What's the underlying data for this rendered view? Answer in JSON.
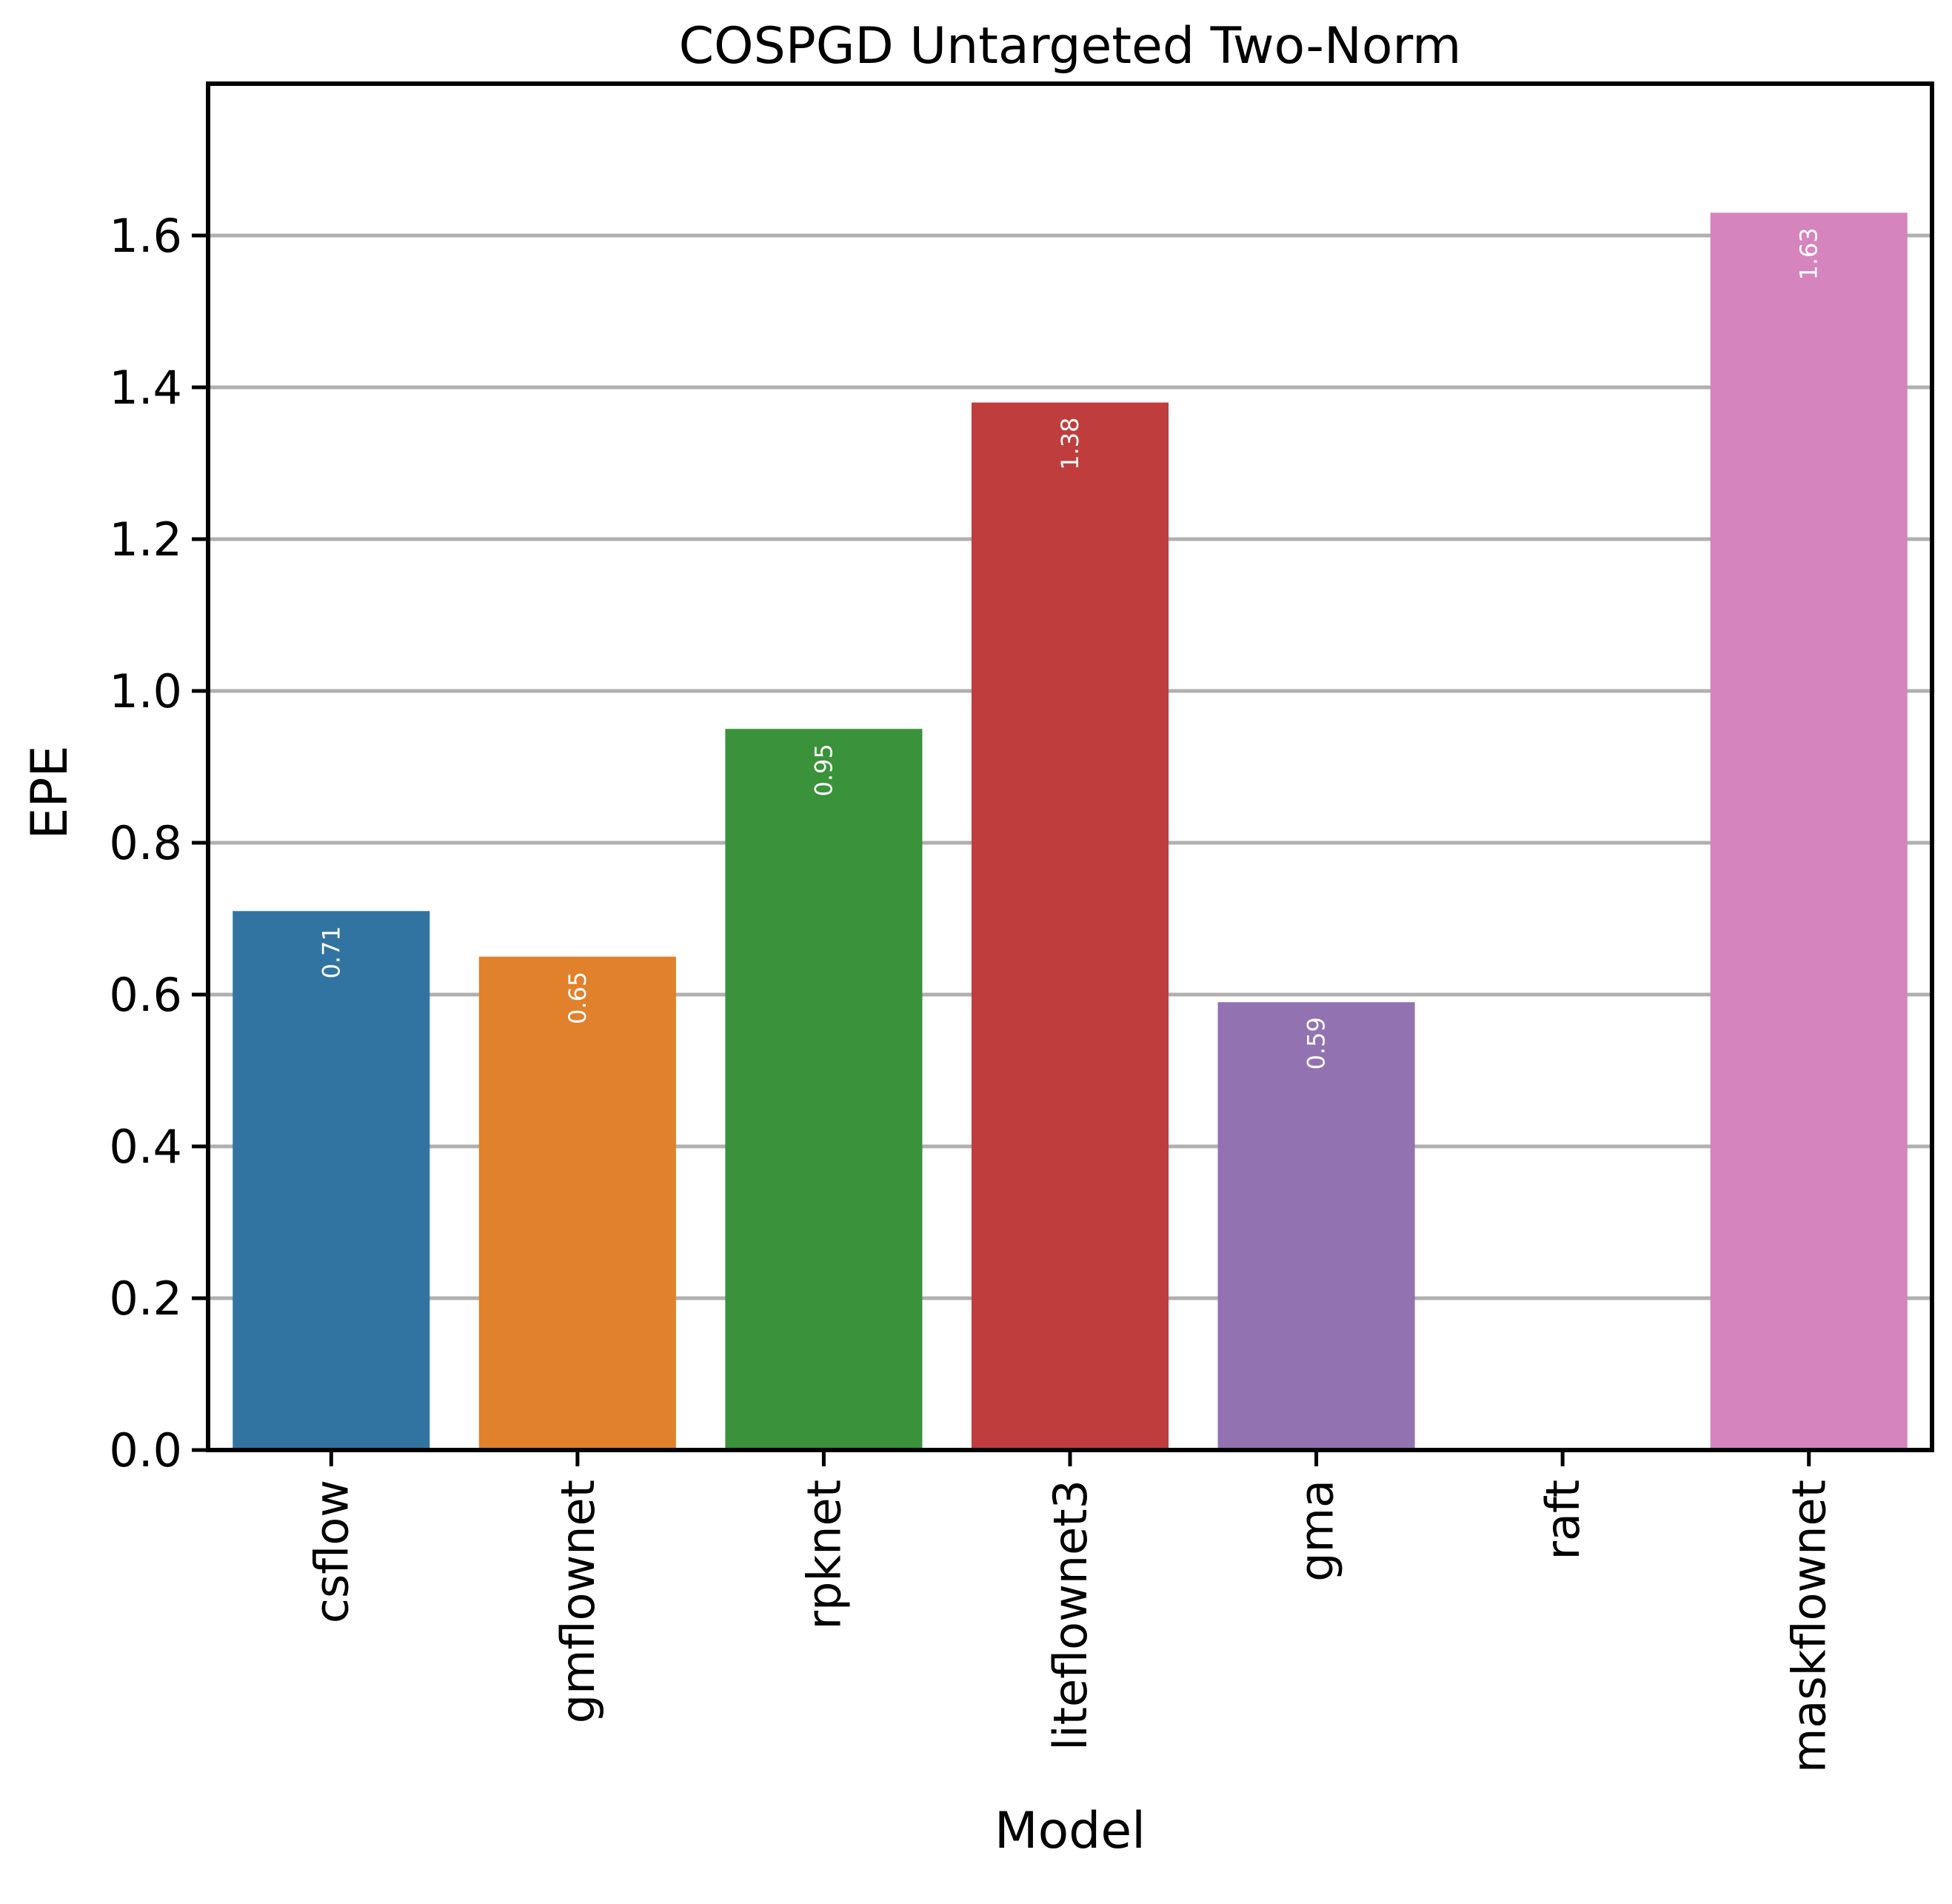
{
  "chart_data": {
    "type": "bar",
    "title": "COSPGD Untargeted Two-Norm",
    "xlabel": "Model",
    "ylabel": "EPE",
    "categories": [
      "csflow",
      "gmflownet",
      "rpknet",
      "liteflownet3",
      "gma",
      "raft",
      "maskflownet"
    ],
    "values": [
      0.71,
      0.65,
      0.95,
      1.38,
      0.59,
      0,
      1.63
    ],
    "value_labels": [
      "0.71",
      "0.65",
      "0.95",
      "1.38",
      "0.59",
      "",
      "1.63"
    ],
    "colors": [
      "#3274a1",
      "#e1812c",
      "#3a923a",
      "#c03d3e",
      "#9372b2",
      "#845b53",
      "#d684bd"
    ],
    "ylim": [
      0,
      1.8
    ],
    "yticks": [
      0.0,
      0.2,
      0.4,
      0.6,
      0.8,
      1.0,
      1.2,
      1.4,
      1.6
    ],
    "ytick_labels": [
      "0.0",
      "0.2",
      "0.4",
      "0.6",
      "0.8",
      "1.0",
      "1.2",
      "1.4",
      "1.6"
    ],
    "grid": "horizontal"
  }
}
